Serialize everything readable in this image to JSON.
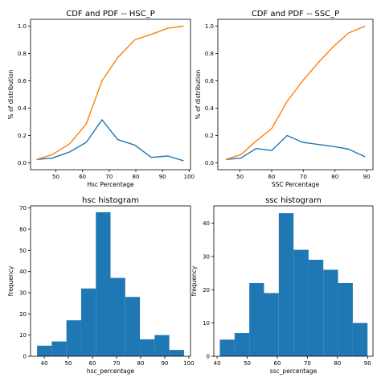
{
  "chart_data": [
    {
      "type": "line",
      "title": "CDF and PDF -- HSC_P",
      "xlabel": "Hsc Percentage",
      "ylabel": "% of distribution",
      "xlim": [
        40.5,
        100.5
      ],
      "ylim": [
        -0.05,
        1.05
      ],
      "xticks": [
        50,
        60,
        70,
        80,
        90,
        100
      ],
      "yticks": [
        0.0,
        0.2,
        0.4,
        0.6,
        0.8,
        1.0
      ],
      "ytick_labels": [
        "0.0",
        "0.2",
        "0.4",
        "0.6",
        "0.8",
        "1.0"
      ],
      "x": [
        42.8,
        48.6,
        55.2,
        61.4,
        67.3,
        73.2,
        79.6,
        85.8,
        92.0,
        97.9
      ],
      "series": [
        {
          "color": "#1f77b4",
          "values": [
            0.025,
            0.035,
            0.08,
            0.15,
            0.315,
            0.17,
            0.13,
            0.04,
            0.05,
            0.015
          ]
        },
        {
          "color": "#ff7f0e",
          "values": [
            0.025,
            0.06,
            0.14,
            0.285,
            0.6,
            0.77,
            0.9,
            0.94,
            0.985,
            1.0
          ]
        }
      ]
    },
    {
      "type": "line",
      "title": "CDF and PDF -- SSC_P",
      "xlabel": "SSC Percentage",
      "ylabel": "% of distribution",
      "xlim": [
        43.0,
        92.0
      ],
      "ylim": [
        -0.05,
        1.05
      ],
      "xticks": [
        50,
        60,
        70,
        80,
        90
      ],
      "yticks": [
        0.0,
        0.2,
        0.4,
        0.6,
        0.8,
        1.0
      ],
      "ytick_labels": [
        "0.0",
        "0.2",
        "0.4",
        "0.6",
        "0.8",
        "1.0"
      ],
      "x": [
        45.5,
        50.3,
        55.1,
        60.0,
        64.9,
        69.8,
        74.6,
        79.5,
        84.3,
        89.5
      ],
      "series": [
        {
          "color": "#1f77b4",
          "values": [
            0.025,
            0.035,
            0.105,
            0.09,
            0.2,
            0.15,
            0.135,
            0.12,
            0.1,
            0.045
          ]
        },
        {
          "color": "#ff7f0e",
          "values": [
            0.025,
            0.06,
            0.16,
            0.25,
            0.45,
            0.6,
            0.73,
            0.85,
            0.95,
            1.0
          ]
        }
      ]
    },
    {
      "type": "bar",
      "title": "hsc histogram",
      "xlabel": "hsc_percentage",
      "ylabel": "frequency",
      "xlim": [
        34.3,
        100.7
      ],
      "ylim": [
        0,
        71
      ],
      "xticks": [
        40,
        50,
        60,
        70,
        80,
        90,
        100
      ],
      "yticks": [
        0,
        10,
        20,
        30,
        40,
        50,
        60,
        70
      ],
      "bin_edges": [
        37.0,
        43.1,
        49.2,
        55.3,
        61.4,
        67.5,
        73.6,
        79.7,
        85.8,
        91.9,
        98.0
      ],
      "values": [
        5,
        7,
        17,
        32,
        68,
        37,
        28,
        8,
        10,
        3
      ],
      "color": "#1f77b4"
    },
    {
      "type": "bar",
      "title": "ssc histogram",
      "xlabel": "ssc_percentage",
      "ylabel": "frequency",
      "xlim": [
        38.9,
        91.8
      ],
      "ylim": [
        0,
        45.2
      ],
      "xticks": [
        40,
        50,
        60,
        70,
        80,
        90
      ],
      "yticks": [
        0,
        10,
        20,
        30,
        40
      ],
      "bin_edges": [
        40.9,
        45.8,
        50.7,
        55.6,
        60.5,
        65.4,
        70.4,
        75.3,
        80.2,
        85.1,
        90.0
      ],
      "values": [
        5,
        7,
        22,
        19,
        43,
        32,
        29,
        26,
        22,
        10
      ],
      "color": "#1f77b4"
    }
  ]
}
